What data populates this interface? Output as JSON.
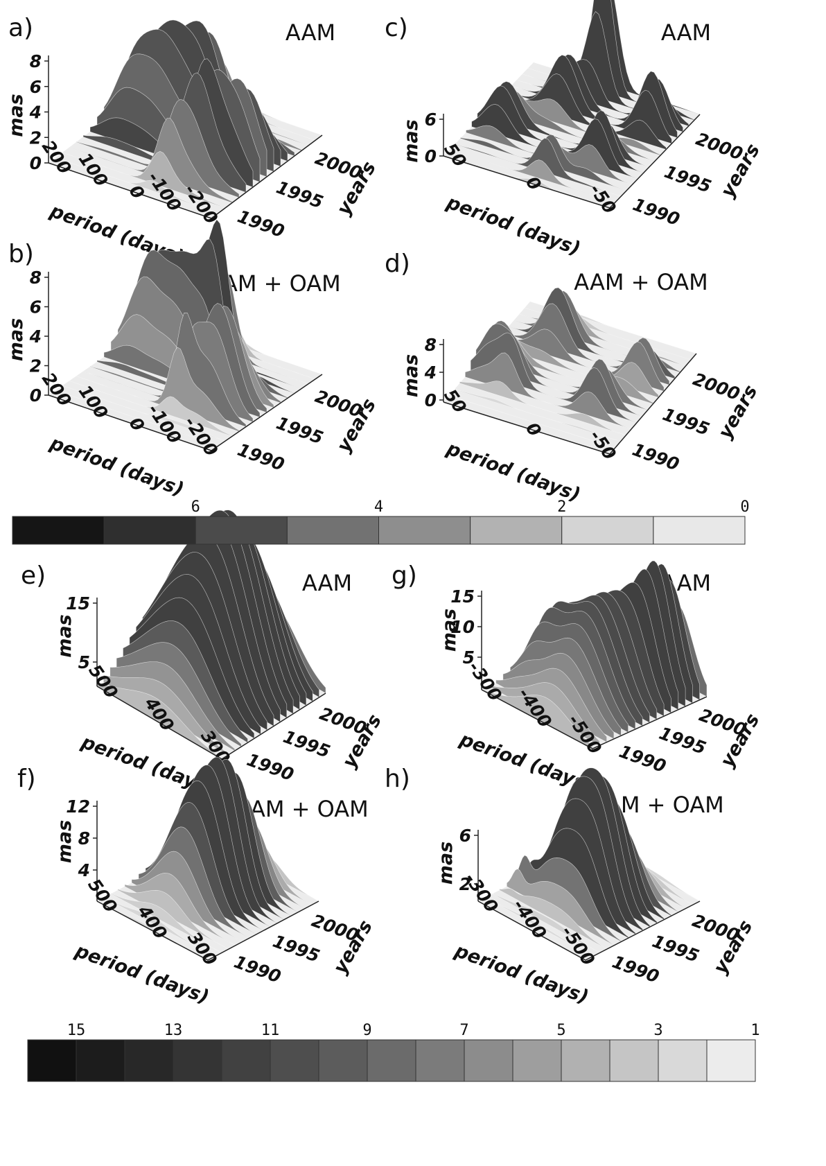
{
  "panels": [
    {
      "letter": "a)",
      "title": "AAM",
      "z_label": "mas",
      "z_ticks": [
        0,
        2,
        4,
        6,
        8
      ],
      "x_label": "period (days)",
      "x_ticks": [
        200,
        100,
        0,
        -100,
        -200
      ],
      "y_label": "years",
      "y_ticks": [
        1990,
        1995,
        2000
      ]
    },
    {
      "letter": "b)",
      "title": "AAM + OAM",
      "z_label": "mas",
      "z_ticks": [
        0,
        2,
        4,
        6,
        8
      ],
      "x_label": "period (days)",
      "x_ticks": [
        200,
        100,
        0,
        -100,
        -200
      ],
      "y_label": "years",
      "y_ticks": [
        1990,
        1995,
        2000
      ]
    },
    {
      "letter": "c)",
      "title": "AAM",
      "z_label": "mas",
      "z_ticks": [
        0,
        6
      ],
      "x_label": "period (days)",
      "x_ticks": [
        50,
        0,
        -50
      ],
      "y_label": "years",
      "y_ticks": [
        1990,
        1995,
        2000
      ]
    },
    {
      "letter": "d)",
      "title": "AAM + OAM",
      "z_label": "mas",
      "z_ticks": [
        0,
        4,
        8
      ],
      "x_label": "period (days)",
      "x_ticks": [
        50,
        0,
        -50
      ],
      "y_label": "years",
      "y_ticks": [
        1990,
        1995,
        2000
      ]
    },
    {
      "letter": "e)",
      "title": "AAM",
      "z_label": "mas",
      "z_ticks": [
        5,
        15
      ],
      "x_label": "period (days)",
      "x_ticks": [
        500,
        400,
        300
      ],
      "y_label": "years",
      "y_ticks": [
        1990,
        1995,
        2000
      ]
    },
    {
      "letter": "f)",
      "title": "AAM + OAM",
      "z_label": "mas",
      "z_ticks": [
        4,
        8,
        12
      ],
      "x_label": "period (days)",
      "x_ticks": [
        500,
        400,
        300
      ],
      "y_label": "years",
      "y_ticks": [
        1990,
        1995,
        2000
      ]
    },
    {
      "letter": "g)",
      "title": "AAM",
      "z_label": "mas",
      "z_ticks": [
        5,
        10,
        15
      ],
      "x_label": "period (days)",
      "x_ticks": [
        -300,
        -400,
        -500
      ],
      "y_label": "years",
      "y_ticks": [
        1990,
        1995,
        2000
      ]
    },
    {
      "letter": "h)",
      "title": "AAM  + OAM",
      "z_label": "mas",
      "z_ticks": [
        2,
        6
      ],
      "x_label": "period (days)",
      "x_ticks": [
        -300,
        -400,
        -500
      ],
      "y_label": "years",
      "y_ticks": [
        1990,
        1995,
        2000
      ]
    }
  ],
  "colorbars": [
    {
      "ticks": [
        6,
        4,
        2,
        0
      ],
      "colors": [
        "#151515",
        "#2f2f2f",
        "#4b4b4b",
        "#727272",
        "#8e8e8e",
        "#b2b2b2",
        "#d4d4d4",
        "#e8e8e8"
      ]
    },
    {
      "ticks": [
        15,
        13,
        11,
        9,
        7,
        5,
        3,
        1
      ],
      "colors": [
        "#111111",
        "#1c1c1c",
        "#282828",
        "#343434",
        "#414141",
        "#4e4e4e",
        "#5c5c5c",
        "#6b6b6b",
        "#7b7b7b",
        "#8c8c8c",
        "#9e9e9e",
        "#b1b1b1",
        "#c5c5c5",
        "#d9d9d9",
        "#ececec"
      ]
    }
  ]
}
